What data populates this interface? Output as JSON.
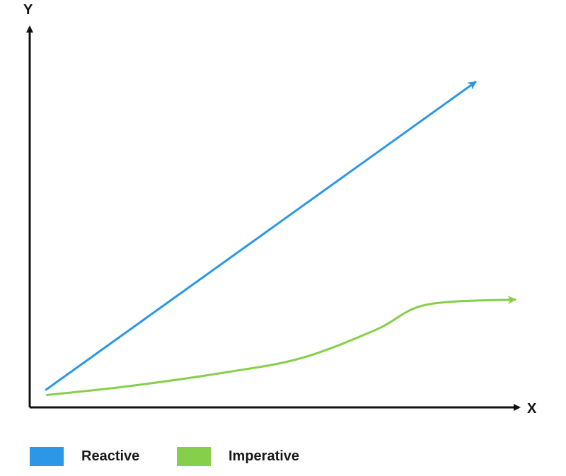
{
  "chart_data": {
    "type": "line",
    "xlabel": "X",
    "ylabel": "Y",
    "xlim": [
      0,
      100
    ],
    "ylim": [
      0,
      100
    ],
    "grid": false,
    "legend_placement": "bottom-left",
    "series": [
      {
        "name": "Reactive",
        "color": "#2b97e6",
        "points": [
          [
            3.3,
            5
          ],
          [
            90,
            92
          ]
        ]
      },
      {
        "name": "Imperative",
        "color": "#86cf4a",
        "points": [
          [
            3.5,
            3.5
          ],
          [
            20,
            6
          ],
          [
            40,
            10
          ],
          [
            55,
            14
          ],
          [
            70,
            22
          ],
          [
            80,
            29
          ],
          [
            98,
            30.5
          ]
        ]
      }
    ]
  },
  "legend": [
    {
      "label": "Reactive",
      "color": "#2b97e6"
    },
    {
      "label": "Imperative",
      "color": "#86cf4a"
    }
  ]
}
